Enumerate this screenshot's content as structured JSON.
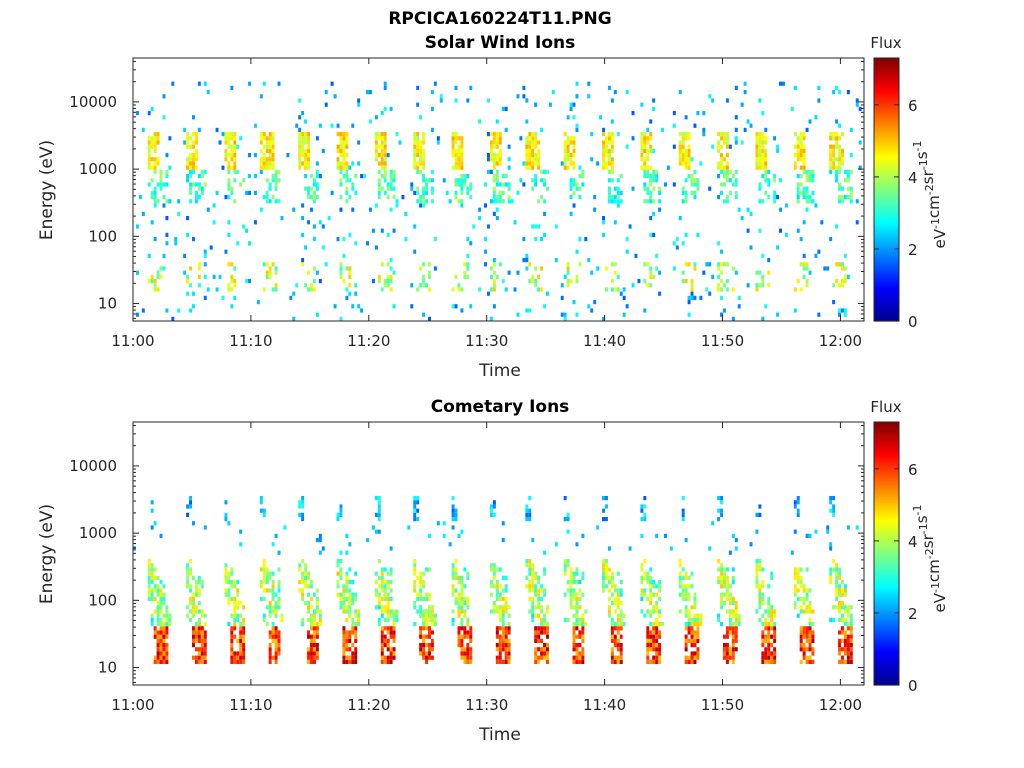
{
  "figure": {
    "title": "RPCICA160224T11.PNG"
  },
  "colormap": [
    "#00008f",
    "#0000ff",
    "#0080ff",
    "#00ffff",
    "#80ff80",
    "#ffff00",
    "#ff8000",
    "#ff0000",
    "#800000"
  ],
  "chart_data": [
    {
      "type": "heatmap",
      "title": "Solar Wind Ions",
      "xlabel": "Time",
      "ylabel": "Energy (eV)",
      "x_ticks": [
        "11:00",
        "11:10",
        "11:20",
        "11:30",
        "11:40",
        "11:50",
        "12:00"
      ],
      "x_range_minutes": [
        0,
        62
      ],
      "y_scale": "log",
      "y_range": [
        5.5,
        45000
      ],
      "y_ticks": [
        10,
        100,
        1000,
        10000
      ],
      "y_tick_labels": [
        "10",
        "100",
        "1000",
        "10000"
      ],
      "colorbar": {
        "title": "Flux",
        "label": "eV-1cm-2sr-1s-1",
        "range": [
          0,
          7.3
        ],
        "ticks": [
          "0",
          "2",
          "4",
          "6"
        ]
      },
      "scan_period_min": 3.22,
      "scan_start_min": 1.2,
      "features": [
        {
          "name": "core beam",
          "energy": [
            1000,
            3500
          ],
          "flux": [
            4,
            5
          ]
        },
        {
          "name": "dispersed tail",
          "energy": [
            300,
            1000
          ],
          "flux": [
            2.5,
            4
          ]
        },
        {
          "name": "low-energy band",
          "energy": [
            15,
            40
          ],
          "flux": [
            3,
            5
          ]
        },
        {
          "name": "sparse background",
          "energy": [
            5.5,
            20000
          ],
          "flux": [
            1.5,
            3
          ]
        }
      ]
    },
    {
      "type": "heatmap",
      "title": "Cometary Ions",
      "xlabel": "Time",
      "ylabel": "Energy (eV)",
      "x_ticks": [
        "11:00",
        "11:10",
        "11:20",
        "11:30",
        "11:40",
        "11:50",
        "12:00"
      ],
      "x_range_minutes": [
        0,
        62
      ],
      "y_scale": "log",
      "y_range": [
        5.5,
        45000
      ],
      "y_ticks": [
        10,
        100,
        1000,
        10000
      ],
      "y_tick_labels": [
        "10",
        "100",
        "1000",
        "10000"
      ],
      "colorbar": {
        "title": "Flux",
        "label": "eV-1cm-2sr-1s-1",
        "range": [
          0,
          7.3
        ],
        "ticks": [
          "0",
          "2",
          "4",
          "6"
        ]
      },
      "scan_period_min": 3.22,
      "scan_start_min": 1.2,
      "features": [
        {
          "name": "peak band",
          "energy": [
            12,
            40
          ],
          "flux": [
            5,
            7
          ]
        },
        {
          "name": "dispersion arc",
          "energy": [
            40,
            400
          ],
          "flux": [
            3,
            5
          ]
        },
        {
          "name": "high-energy spots",
          "energy": [
            1500,
            3500
          ],
          "flux": [
            1.5,
            3
          ]
        }
      ]
    }
  ]
}
